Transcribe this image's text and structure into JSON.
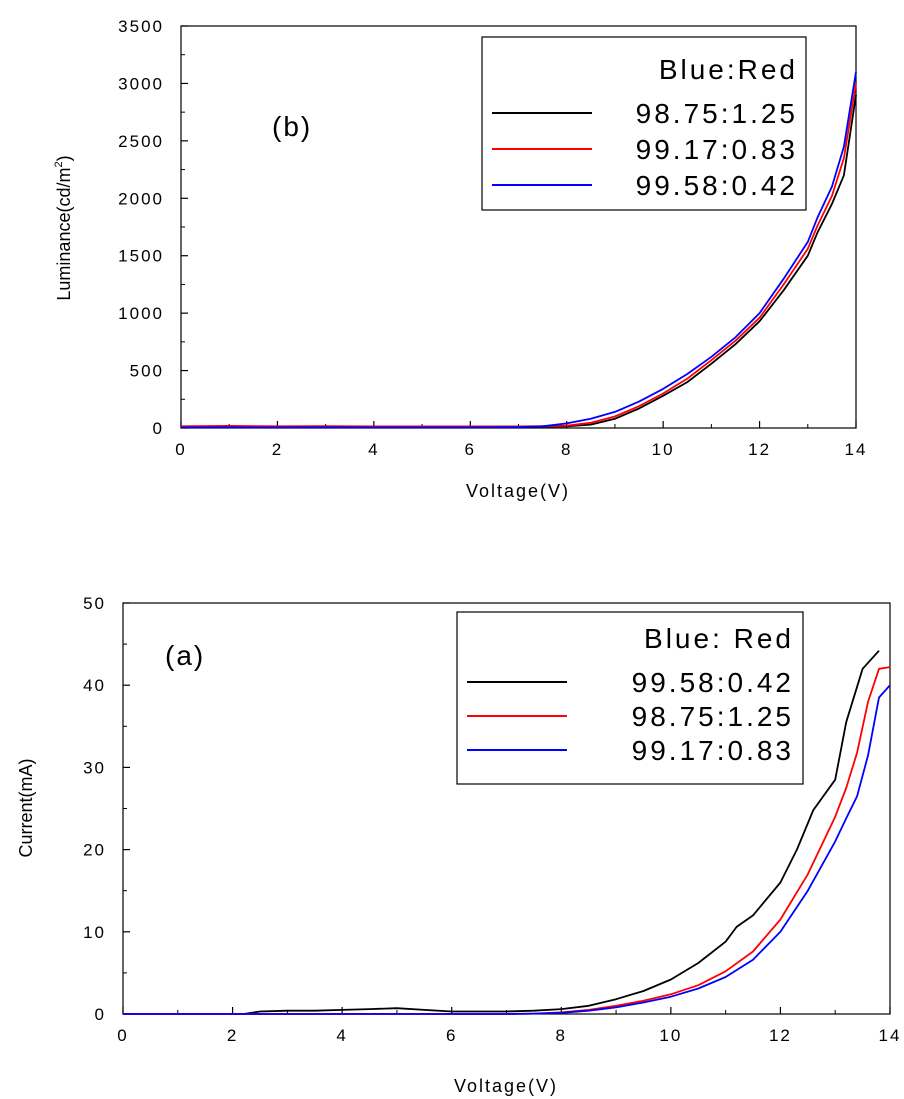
{
  "chart_data": [
    {
      "type": "line",
      "panel_label": "(b)",
      "xlabel": "Voltage(V)",
      "ylabel_main": "Luminance(cd/m",
      "ylabel_sup": "2",
      "ylabel_tail": ")",
      "xlim": [
        0,
        14
      ],
      "ylim": [
        0,
        3500
      ],
      "xticks": [
        0,
        2,
        4,
        6,
        8,
        10,
        12,
        14
      ],
      "yticks": [
        0,
        500,
        1000,
        1500,
        2000,
        2500,
        3000,
        3500
      ],
      "legend_title": "Blue:Red",
      "legend_position": "top-right",
      "series": [
        {
          "name": "98.75:1.25",
          "color": "#000000",
          "points": [
            [
              0,
              10
            ],
            [
              1,
              12
            ],
            [
              2,
              10
            ],
            [
              3,
              12
            ],
            [
              4,
              10
            ],
            [
              5,
              10
            ],
            [
              6,
              10
            ],
            [
              7,
              10
            ],
            [
              7.5,
              12
            ],
            [
              8,
              15
            ],
            [
              8.5,
              30
            ],
            [
              9,
              80
            ],
            [
              9.5,
              170
            ],
            [
              10,
              280
            ],
            [
              10.5,
              400
            ],
            [
              11,
              560
            ],
            [
              11.5,
              730
            ],
            [
              12,
              930
            ],
            [
              12.5,
              1200
            ],
            [
              13,
              1500
            ],
            [
              13.2,
              1700
            ],
            [
              13.5,
              1950
            ],
            [
              13.75,
              2200
            ],
            [
              14,
              2900
            ]
          ]
        },
        {
          "name": "99.17:0.83",
          "color": "#ff0000",
          "points": [
            [
              0,
              15
            ],
            [
              1,
              18
            ],
            [
              2,
              15
            ],
            [
              3,
              16
            ],
            [
              4,
              14
            ],
            [
              5,
              14
            ],
            [
              6,
              14
            ],
            [
              7,
              14
            ],
            [
              7.5,
              16
            ],
            [
              8,
              20
            ],
            [
              8.5,
              45
            ],
            [
              9,
              100
            ],
            [
              9.5,
              190
            ],
            [
              10,
              300
            ],
            [
              10.5,
              430
            ],
            [
              11,
              590
            ],
            [
              11.5,
              760
            ],
            [
              12,
              960
            ],
            [
              12.5,
              1250
            ],
            [
              13,
              1560
            ],
            [
              13.2,
              1760
            ],
            [
              13.5,
              2020
            ],
            [
              13.75,
              2350
            ],
            [
              14,
              3000
            ]
          ]
        },
        {
          "name": "99.58:0.42",
          "color": "#0000ff",
          "points": [
            [
              0,
              5
            ],
            [
              1,
              6
            ],
            [
              2,
              5
            ],
            [
              3,
              6
            ],
            [
              4,
              5
            ],
            [
              5,
              5
            ],
            [
              6,
              5
            ],
            [
              7,
              8
            ],
            [
              7.5,
              15
            ],
            [
              8,
              40
            ],
            [
              8.5,
              80
            ],
            [
              9,
              140
            ],
            [
              9.5,
              230
            ],
            [
              10,
              340
            ],
            [
              10.5,
              470
            ],
            [
              11,
              620
            ],
            [
              11.5,
              790
            ],
            [
              12,
              1000
            ],
            [
              12.5,
              1300
            ],
            [
              13,
              1620
            ],
            [
              13.2,
              1830
            ],
            [
              13.5,
              2100
            ],
            [
              13.75,
              2450
            ],
            [
              14,
              3100
            ]
          ]
        }
      ]
    },
    {
      "type": "line",
      "panel_label": "(a)",
      "xlabel": "Voltage(V)",
      "ylabel": "Current(mA)",
      "xlim": [
        0,
        14
      ],
      "ylim": [
        0,
        50
      ],
      "xticks": [
        0,
        2,
        4,
        6,
        8,
        10,
        12,
        14
      ],
      "yticks": [
        0,
        10,
        20,
        30,
        40,
        50
      ],
      "legend_title": "Blue: Red",
      "legend_position": "top-right",
      "series": [
        {
          "name": "99.58:0.42",
          "color": "#000000",
          "points": [
            [
              0,
              0
            ],
            [
              2.2,
              0
            ],
            [
              2.5,
              0.3
            ],
            [
              3,
              0.4
            ],
            [
              3.5,
              0.4
            ],
            [
              4,
              0.5
            ],
            [
              4.5,
              0.6
            ],
            [
              5,
              0.7
            ],
            [
              5.5,
              0.5
            ],
            [
              6,
              0.3
            ],
            [
              6.5,
              0.3
            ],
            [
              7,
              0.3
            ],
            [
              7.5,
              0.4
            ],
            [
              8,
              0.6
            ],
            [
              8.5,
              1.0
            ],
            [
              9,
              1.8
            ],
            [
              9.5,
              2.8
            ],
            [
              10,
              4.2
            ],
            [
              10.5,
              6.2
            ],
            [
              11,
              8.8
            ],
            [
              11.2,
              10.6
            ],
            [
              11.5,
              12.0
            ],
            [
              12,
              16.0
            ],
            [
              12.3,
              20.0
            ],
            [
              12.6,
              24.8
            ],
            [
              13,
              28.5
            ],
            [
              13.2,
              35.5
            ],
            [
              13.5,
              42.0
            ],
            [
              13.8,
              44.2
            ]
          ]
        },
        {
          "name": "98.75:1.25",
          "color": "#ff0000",
          "points": [
            [
              0,
              0
            ],
            [
              7,
              0
            ],
            [
              7.5,
              0.05
            ],
            [
              8,
              0.2
            ],
            [
              8.5,
              0.5
            ],
            [
              9,
              1.0
            ],
            [
              9.5,
              1.6
            ],
            [
              10,
              2.4
            ],
            [
              10.5,
              3.5
            ],
            [
              11,
              5.2
            ],
            [
              11.5,
              7.6
            ],
            [
              12,
              11.5
            ],
            [
              12.5,
              17.0
            ],
            [
              13,
              24.0
            ],
            [
              13.2,
              27.5
            ],
            [
              13.4,
              31.8
            ],
            [
              13.6,
              38.0
            ],
            [
              13.8,
              42.0
            ],
            [
              14,
              42.2
            ]
          ]
        },
        {
          "name": "99.17:0.83",
          "color": "#0000ff",
          "points": [
            [
              0,
              0
            ],
            [
              7,
              0
            ],
            [
              7.5,
              0.05
            ],
            [
              8,
              0.15
            ],
            [
              8.5,
              0.4
            ],
            [
              9,
              0.8
            ],
            [
              9.5,
              1.4
            ],
            [
              10,
              2.1
            ],
            [
              10.5,
              3.1
            ],
            [
              11,
              4.5
            ],
            [
              11.5,
              6.6
            ],
            [
              12,
              10.0
            ],
            [
              12.5,
              15.0
            ],
            [
              13,
              21.0
            ],
            [
              13.2,
              23.8
            ],
            [
              13.4,
              26.5
            ],
            [
              13.6,
              31.5
            ],
            [
              13.8,
              38.5
            ],
            [
              14,
              40.0
            ]
          ]
        }
      ]
    }
  ]
}
